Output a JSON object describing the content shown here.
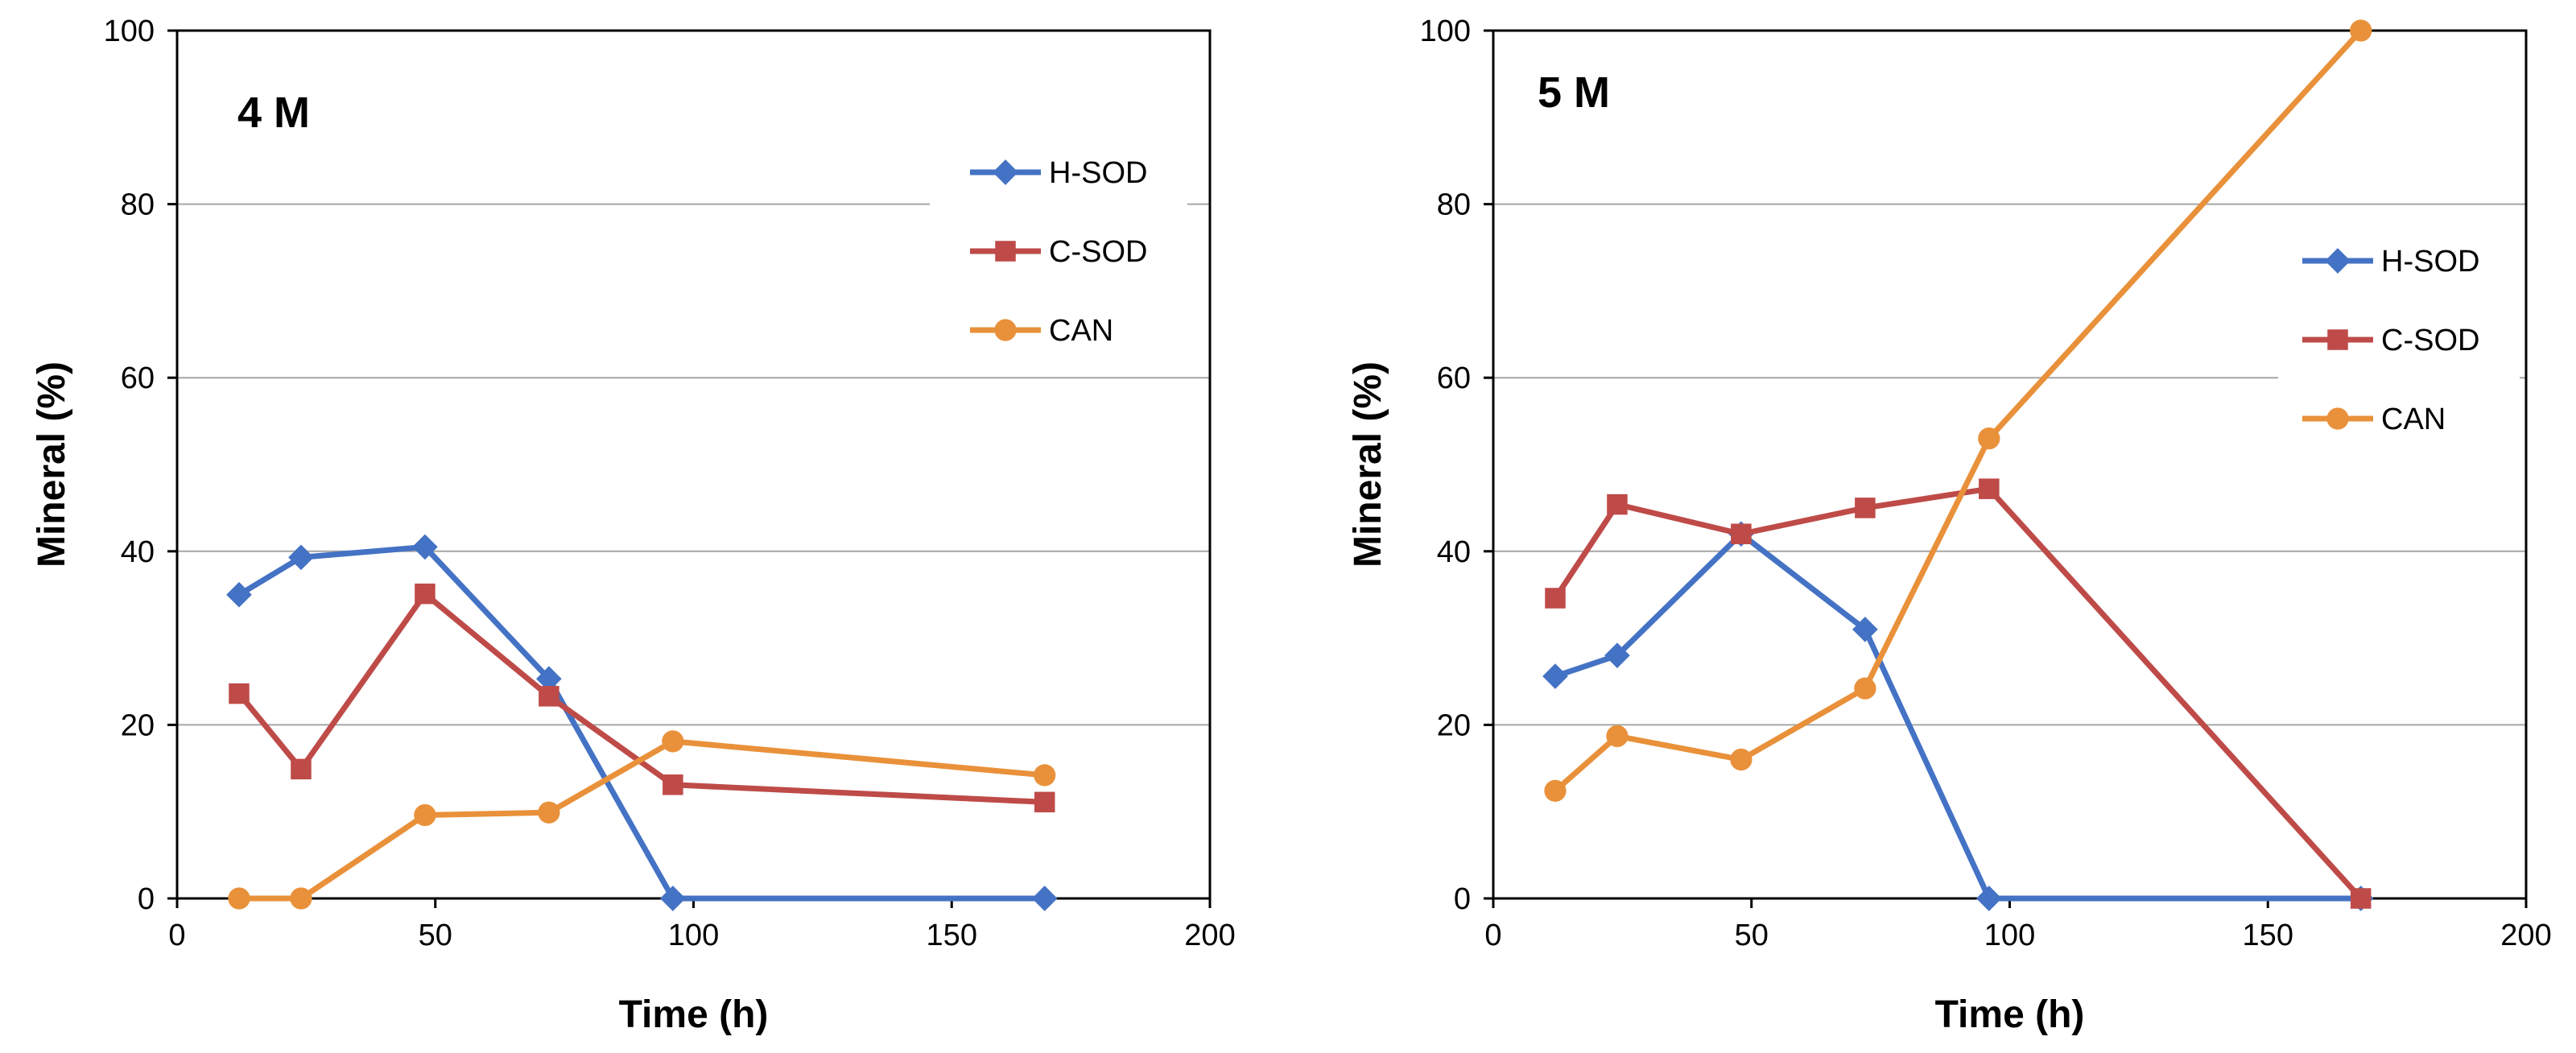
{
  "colors": {
    "H-SOD": "#4472C4",
    "C-SOD": "#BE4B48",
    "CAN": "#E9913A",
    "grid": "#A6A6A6",
    "axis": "#000000"
  },
  "chart_data": [
    {
      "type": "line",
      "title": "4 M",
      "xlabel": "Time (h)",
      "ylabel": "Mineral (%)",
      "xlim": [
        0,
        200
      ],
      "ylim": [
        0,
        100
      ],
      "xticks": [
        0,
        50,
        100,
        150,
        200
      ],
      "yticks": [
        0,
        20,
        40,
        60,
        80,
        100
      ],
      "grid": "horizontal",
      "legend_position": "top-right",
      "series": [
        {
          "name": "H-SOD",
          "marker": "diamond",
          "x": [
            12,
            24,
            48,
            72,
            96,
            168
          ],
          "y": [
            35,
            39.3,
            40.5,
            25.3,
            0,
            0
          ]
        },
        {
          "name": "C-SOD",
          "marker": "square",
          "x": [
            12,
            24,
            48,
            72,
            96,
            168
          ],
          "y": [
            23.6,
            14.9,
            35.1,
            23.3,
            13.1,
            11.1
          ]
        },
        {
          "name": "CAN",
          "marker": "circle",
          "x": [
            12,
            24,
            48,
            72,
            96,
            168
          ],
          "y": [
            0,
            0,
            9.6,
            9.9,
            18.1,
            14.2
          ]
        }
      ]
    },
    {
      "type": "line",
      "title": "5 M",
      "xlabel": "Time (h)",
      "ylabel": "Mineral (%)",
      "xlim": [
        0,
        200
      ],
      "ylim": [
        0,
        100
      ],
      "xticks": [
        0,
        50,
        100,
        150,
        200
      ],
      "yticks": [
        0,
        20,
        40,
        60,
        80,
        100
      ],
      "grid": "horizontal",
      "legend_position": "right",
      "series": [
        {
          "name": "H-SOD",
          "marker": "diamond",
          "x": [
            12,
            24,
            48,
            72,
            96,
            168
          ],
          "y": [
            25.6,
            28,
            42,
            31,
            0,
            0
          ]
        },
        {
          "name": "C-SOD",
          "marker": "square",
          "x": [
            12,
            24,
            48,
            72,
            96,
            168
          ],
          "y": [
            34.6,
            45.4,
            42,
            45,
            47.2,
            0
          ]
        },
        {
          "name": "CAN",
          "marker": "circle",
          "x": [
            12,
            24,
            48,
            72,
            96,
            168
          ],
          "y": [
            12.4,
            18.7,
            16,
            24.2,
            53,
            100
          ]
        }
      ]
    }
  ]
}
